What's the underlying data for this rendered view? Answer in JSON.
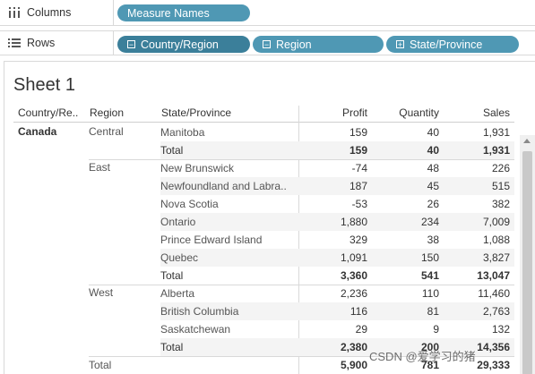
{
  "shelves": {
    "columns": {
      "label": "Columns",
      "icon": "columns-icon",
      "pills": [
        "Measure Names"
      ]
    },
    "rows": {
      "label": "Rows",
      "icon": "rows-icon",
      "pills": [
        "Country/Region",
        "Region",
        "State/Province"
      ]
    }
  },
  "sheet": {
    "title": "Sheet 1"
  },
  "table": {
    "headers": {
      "country": "Country/Re..",
      "region": "Region",
      "state": "State/Province",
      "profit": "Profit",
      "quantity": "Quantity",
      "sales": "Sales"
    },
    "country": "Canada",
    "regions": [
      {
        "name": "Central",
        "rows": [
          {
            "state": "Manitoba",
            "profit": "159",
            "quantity": "40",
            "sales": "1,931"
          },
          {
            "state": "Total",
            "profit": "159",
            "quantity": "40",
            "sales": "1,931"
          }
        ]
      },
      {
        "name": "East",
        "rows": [
          {
            "state": "New Brunswick",
            "profit": "-74",
            "quantity": "48",
            "sales": "226"
          },
          {
            "state": "Newfoundland and Labra..",
            "profit": "187",
            "quantity": "45",
            "sales": "515"
          },
          {
            "state": "Nova Scotia",
            "profit": "-53",
            "quantity": "26",
            "sales": "382"
          },
          {
            "state": "Ontario",
            "profit": "1,880",
            "quantity": "234",
            "sales": "7,009"
          },
          {
            "state": "Prince Edward Island",
            "profit": "329",
            "quantity": "38",
            "sales": "1,088"
          },
          {
            "state": "Quebec",
            "profit": "1,091",
            "quantity": "150",
            "sales": "3,827"
          },
          {
            "state": "Total",
            "profit": "3,360",
            "quantity": "541",
            "sales": "13,047"
          }
        ]
      },
      {
        "name": "West",
        "rows": [
          {
            "state": "Alberta",
            "profit": "2,236",
            "quantity": "110",
            "sales": "11,460"
          },
          {
            "state": "British Columbia",
            "profit": "116",
            "quantity": "81",
            "sales": "2,763"
          },
          {
            "state": "Saskatchewan",
            "profit": "29",
            "quantity": "9",
            "sales": "132"
          },
          {
            "state": "Total",
            "profit": "2,380",
            "quantity": "200",
            "sales": "14,356"
          }
        ]
      }
    ],
    "grand_total": {
      "label": "Total",
      "profit": "5,900",
      "quantity": "781",
      "sales": "29,333"
    }
  },
  "watermark": "CSDN @爱学习的猪"
}
